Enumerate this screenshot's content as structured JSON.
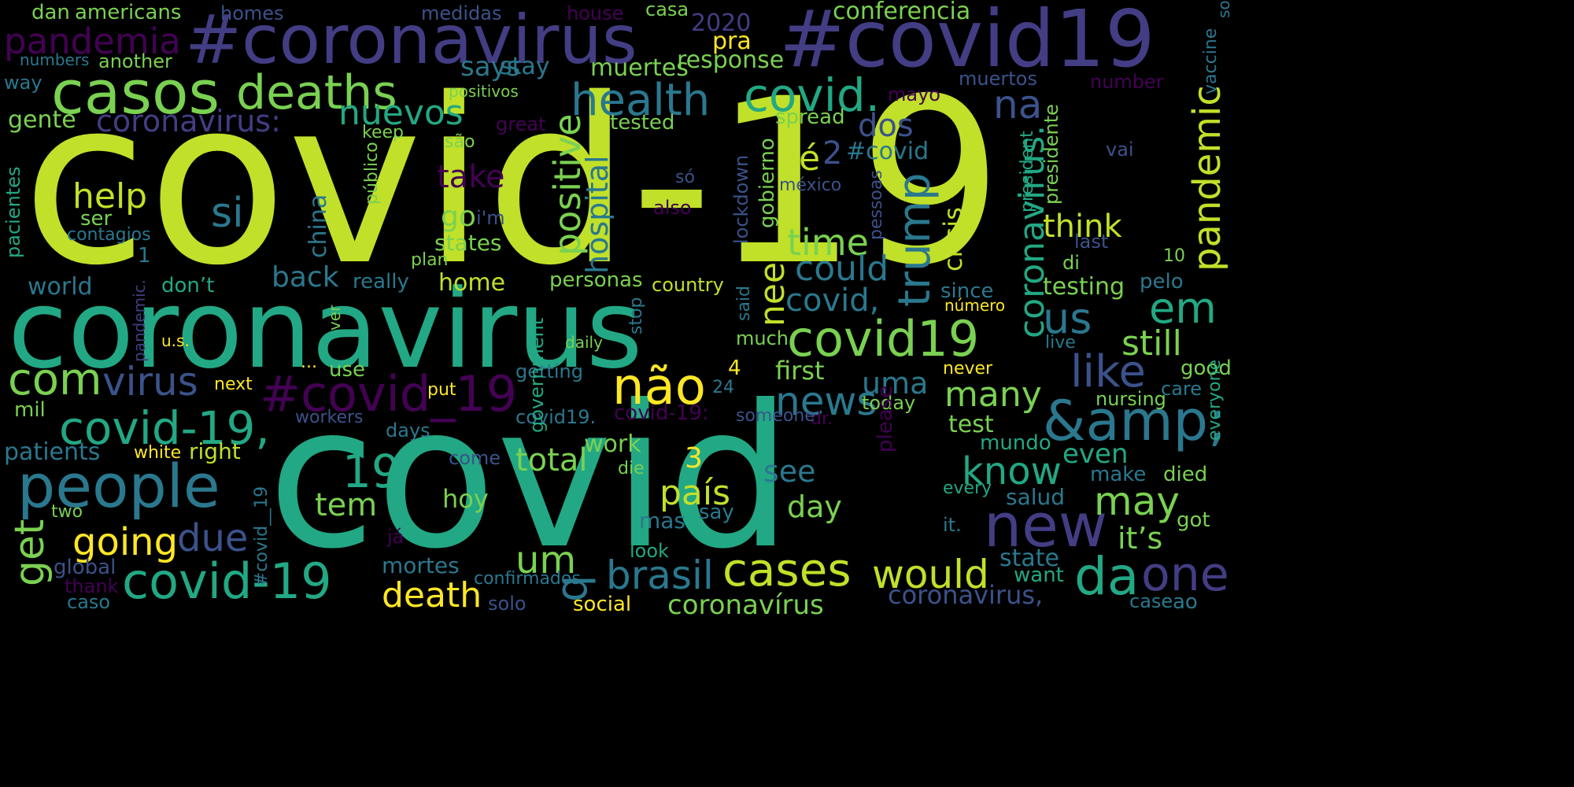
{
  "palette": {
    "background": "#000000",
    "lime": "#c1e029",
    "green": "#7ad151",
    "teal": "#22a884",
    "cyan": "#2a788e",
    "blue": "#3b528b",
    "indigo": "#433d84",
    "purple": "#440154",
    "yellow": "#fde725"
  },
  "words": [
    "covid-19",
    "covid",
    "coronavirus",
    "#covid19",
    "#coronavirus",
    "casos",
    "deaths",
    "health",
    "covid.",
    "pandemia",
    "nuevos",
    "coronavirus:",
    "trump",
    "pandemic",
    "people",
    "new",
    "&amp;",
    "#covid_19",
    "não",
    "covid-19,",
    "covid-19",
    "cases",
    "would",
    "da",
    "one",
    "brasil",
    "death",
    "coronavirus.",
    "covid19",
    "like",
    "em",
    "us",
    "still",
    "com",
    "virus",
    "time",
    "need",
    "é",
    "na",
    "si",
    "help",
    "get",
    "going",
    "due",
    "19",
    "q",
    "um",
    "total",
    "news",
    "uma",
    "many",
    "know",
    "may",
    "it’s",
    "positive",
    "hospital",
    "says",
    "stay",
    "muertes",
    "response",
    "pra",
    "2020",
    "conferencia",
    "medidas",
    "house",
    "casa",
    "homes",
    "dan",
    "americans",
    "numbers",
    "another",
    "way",
    "positivos",
    "gente",
    "covid,",
    "could",
    "dos",
    "2",
    "#covid",
    "mayo",
    "muertos",
    "number",
    "vaccine",
    "president",
    "presidente",
    "spread",
    "tested",
    "great",
    "keep",
    "são",
    "público",
    "lockdown",
    "gobierno",
    "méxico",
    "crisis",
    "china",
    "think",
    "take",
    "go",
    "i'm",
    "states",
    "plan",
    "ser",
    "contagios",
    "pacientes",
    "1",
    "back",
    "really",
    "home",
    "personas",
    "country",
    "world",
    "don’t",
    "said",
    "stop",
    "testing",
    "pelo",
    "10",
    "di",
    "last",
    "so",
    "also",
    "pessoas",
    "vai",
    "número",
    "since",
    "live",
    "much",
    "getting",
    "first",
    "never",
    "good",
    "care",
    "everyone",
    "nursing",
    "today",
    "test",
    "even",
    "make",
    "died",
    "mundo",
    "workers",
    "days",
    "dr.",
    "someone",
    "covid19.",
    "covid-19:",
    "mil",
    "patients",
    "white",
    "right",
    "work",
    "3",
    "see",
    "day",
    "país",
    "please",
    "government",
    "come",
    "die",
    "hoy",
    "tem",
    "mas",
    "say",
    "salud",
    "every",
    "got",
    "two",
    "ver",
    "pandemic.",
    "u.s.",
    "daily",
    "...",
    "use",
    "next",
    "4",
    "24",
    "put",
    "#covid__19",
    "global",
    "thank",
    "caso",
    "solo",
    "confirmados",
    "mortes",
    "look",
    "já",
    "social",
    "coronavírus",
    "coronavirus,",
    "want",
    "state",
    "it.",
    "case",
    "ao",
    "só"
  ]
}
